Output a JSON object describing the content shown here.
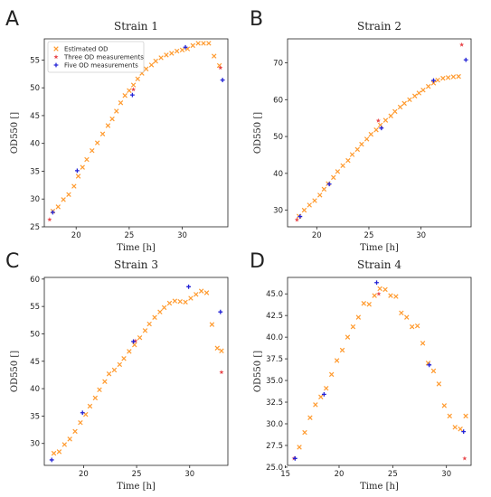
{
  "colors": {
    "estimated": "#ff9a2e",
    "three": "#e8464a",
    "five": "#2323d6"
  },
  "legend": {
    "estimated": "Estimated OD",
    "three": "Three OD measurements",
    "five": "Five OD measurements"
  },
  "chart_data": [
    {
      "type": "scatter",
      "panel_letter": "A",
      "title": "Strain 1",
      "xlabel": "Time [h]",
      "ylabel": "OD550 []",
      "xlim": [
        17.0,
        34.3
      ],
      "ylim": [
        25.0,
        58.8
      ],
      "xticks": [
        20,
        25,
        30
      ],
      "yticks": [
        25,
        30,
        35,
        40,
        45,
        50,
        55
      ],
      "legend_position": "top-left",
      "series": [
        {
          "name": "Estimated OD",
          "marker": "x",
          "x": [
            17.8,
            18.3,
            18.8,
            19.3,
            19.8,
            20.2,
            20.6,
            21.0,
            21.5,
            22.0,
            22.5,
            23.0,
            23.4,
            23.8,
            24.2,
            24.6,
            25.0,
            25.4,
            25.8,
            26.2,
            26.6,
            27.1,
            27.5,
            28.0,
            28.5,
            29.0,
            29.5,
            30.0,
            30.5,
            31.0,
            31.5,
            32.0,
            32.5,
            33.0,
            33.5
          ],
          "y": [
            27.8,
            28.6,
            29.9,
            30.8,
            32.3,
            34.1,
            35.7,
            37.1,
            38.7,
            40.1,
            41.7,
            43.2,
            44.4,
            45.8,
            47.3,
            48.6,
            49.5,
            50.5,
            51.6,
            52.6,
            53.4,
            54.1,
            54.8,
            55.4,
            55.9,
            56.2,
            56.6,
            56.8,
            57.0,
            57.6,
            58.0,
            58.0,
            58.0,
            55.7,
            54.0
          ]
        },
        {
          "name": "Three OD measurements",
          "marker": "*",
          "x": [
            17.5,
            25.4,
            33.6
          ],
          "y": [
            26.3,
            49.7,
            53.6
          ]
        },
        {
          "name": "Five OD measurements",
          "marker": "+",
          "x": [
            17.8,
            20.1,
            25.3,
            30.3,
            33.8
          ],
          "y": [
            27.6,
            35.1,
            48.7,
            57.3,
            51.4
          ]
        }
      ]
    },
    {
      "type": "scatter",
      "panel_letter": "B",
      "title": "Strain 2",
      "xlabel": "Time [h]",
      "ylabel": "OD550 []",
      "xlim": [
        17.2,
        34.8
      ],
      "ylim": [
        25.5,
        76.5
      ],
      "xticks": [
        20,
        25,
        30
      ],
      "yticks": [
        30,
        40,
        50,
        60,
        70
      ],
      "series": [
        {
          "name": "Estimated OD",
          "marker": "x",
          "x": [
            18.3,
            18.8,
            19.3,
            19.8,
            20.3,
            20.7,
            21.1,
            21.6,
            22.0,
            22.5,
            23.0,
            23.4,
            23.9,
            24.3,
            24.8,
            25.2,
            25.7,
            26.1,
            26.6,
            27.1,
            27.5,
            28.0,
            28.4,
            28.9,
            29.4,
            29.8,
            30.2,
            30.7,
            31.2,
            31.6,
            32.1,
            32.6,
            33.1,
            33.6
          ],
          "y": [
            28.4,
            30.0,
            31.4,
            32.6,
            34.1,
            35.7,
            37.2,
            38.9,
            40.5,
            42.1,
            43.5,
            45.1,
            46.5,
            47.9,
            49.3,
            50.6,
            51.8,
            53.1,
            54.4,
            55.6,
            56.8,
            58.0,
            59.0,
            60.0,
            61.0,
            61.8,
            62.6,
            63.6,
            64.5,
            65.3,
            65.8,
            66.0,
            66.2,
            66.3
          ]
        },
        {
          "name": "Three OD measurements",
          "marker": "*",
          "x": [
            18.1,
            25.9,
            33.9
          ],
          "y": [
            27.4,
            54.3,
            74.9
          ]
        },
        {
          "name": "Five OD measurements",
          "marker": "+",
          "x": [
            18.4,
            21.2,
            26.2,
            31.2,
            34.3
          ],
          "y": [
            28.3,
            37.1,
            52.3,
            65.2,
            70.8
          ]
        }
      ]
    },
    {
      "type": "scatter",
      "panel_letter": "C",
      "title": "Strain 3",
      "xlabel": "Time [h]",
      "ylabel": "OD550 []",
      "xlim": [
        16.3,
        33.6
      ],
      "ylim": [
        26.0,
        60.3
      ],
      "xticks": [
        20,
        25,
        30
      ],
      "yticks": [
        30,
        35,
        40,
        45,
        50,
        55,
        60
      ],
      "series": [
        {
          "name": "Estimated OD",
          "marker": "x",
          "x": [
            17.2,
            17.7,
            18.2,
            18.7,
            19.2,
            19.7,
            20.2,
            20.6,
            21.1,
            21.5,
            22.0,
            22.4,
            22.9,
            23.4,
            23.8,
            24.3,
            24.8,
            25.3,
            25.8,
            26.2,
            26.7,
            27.2,
            27.6,
            28.1,
            28.6,
            29.1,
            29.6,
            30.1,
            30.6,
            31.1,
            31.6,
            32.1,
            32.6,
            33.0
          ],
          "y": [
            28.2,
            28.5,
            29.8,
            30.8,
            32.2,
            33.8,
            35.3,
            36.8,
            38.3,
            39.8,
            41.3,
            42.7,
            43.4,
            44.4,
            45.5,
            46.8,
            48.0,
            49.3,
            50.6,
            51.8,
            53.0,
            54.0,
            54.8,
            55.6,
            56.0,
            55.9,
            55.8,
            56.5,
            57.2,
            57.8,
            57.5,
            51.7,
            47.4,
            46.9
          ]
        },
        {
          "name": "Three OD measurements",
          "marker": "*",
          "x": [
            24.9,
            33.0
          ],
          "y": [
            48.7,
            43.0
          ]
        },
        {
          "name": "Five OD measurements",
          "marker": "+",
          "x": [
            17.0,
            19.9,
            24.7,
            29.9,
            32.9
          ],
          "y": [
            27.0,
            35.6,
            48.6,
            58.6,
            54.0
          ]
        }
      ]
    },
    {
      "type": "scatter",
      "panel_letter": "D",
      "title": "Strain 4",
      "xlabel": "Time [h]",
      "ylabel": "OD550 []",
      "xlim": [
        15.2,
        32.3
      ],
      "ylim": [
        25.2,
        46.9
      ],
      "xticks": [
        15,
        20,
        25,
        30
      ],
      "yticks": [
        25.0,
        27.5,
        30.0,
        32.5,
        35.0,
        37.5,
        40.0,
        42.5,
        45.0
      ],
      "series": [
        {
          "name": "Estimated OD",
          "marker": "x",
          "x": [
            16.3,
            16.8,
            17.3,
            17.8,
            18.3,
            18.8,
            19.3,
            19.8,
            20.3,
            20.8,
            21.3,
            21.8,
            22.3,
            22.8,
            23.3,
            23.8,
            24.3,
            24.8,
            25.3,
            25.8,
            26.3,
            26.8,
            27.3,
            27.8,
            28.3,
            28.8,
            29.3,
            29.8,
            30.3,
            30.8,
            31.3,
            31.8
          ],
          "y": [
            27.3,
            29.0,
            30.7,
            32.2,
            33.1,
            34.1,
            35.7,
            37.3,
            38.5,
            40.0,
            41.2,
            42.3,
            43.9,
            43.8,
            44.8,
            45.6,
            45.5,
            44.8,
            44.7,
            42.8,
            42.3,
            41.2,
            41.3,
            39.3,
            37.0,
            36.1,
            34.6,
            32.1,
            30.9,
            29.6,
            29.4,
            30.9
          ]
        },
        {
          "name": "Three OD measurements",
          "marker": "*",
          "x": [
            15.8,
            23.7,
            31.7
          ],
          "y": [
            26.0,
            45.0,
            26.0
          ]
        },
        {
          "name": "Five OD measurements",
          "marker": "+",
          "x": [
            15.9,
            18.6,
            23.5,
            28.4,
            31.6
          ],
          "y": [
            26.0,
            33.4,
            46.3,
            36.8,
            29.1
          ]
        }
      ]
    }
  ]
}
